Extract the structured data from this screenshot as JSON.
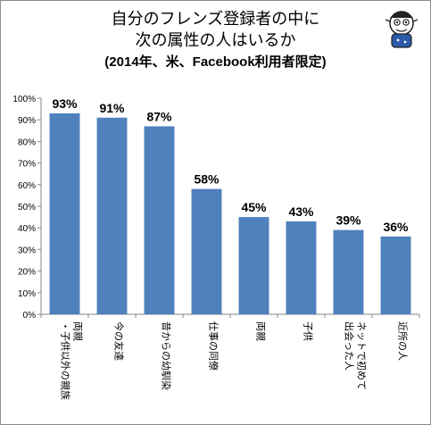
{
  "title": {
    "line1": "自分のフレンズ登録者の中に",
    "line2": "次の属性の人はいるか",
    "line3": "(2014年、米、Facebook利用者限定)"
  },
  "chart_data": {
    "type": "bar",
    "categories": [
      "両親・子供以外の親族",
      "今の友達",
      "昔からの幼馴染",
      "仕事の同僚",
      "両親",
      "子供",
      "ネットで初めて出会った人",
      "近所の人"
    ],
    "category_lines": [
      [
        "両親",
        "・子供以外の親族"
      ],
      [
        "今の友達"
      ],
      [
        "昔からの幼馴染"
      ],
      [
        "仕事の同僚"
      ],
      [
        "両親"
      ],
      [
        "子供"
      ],
      [
        "ネットで初めて",
        "出会った人"
      ],
      [
        "近所の人"
      ]
    ],
    "values": [
      93,
      91,
      87,
      58,
      45,
      43,
      39,
      36
    ],
    "data_labels": [
      "93%",
      "91%",
      "87%",
      "58%",
      "45%",
      "43%",
      "39%",
      "36%"
    ],
    "ylim": [
      0,
      100
    ],
    "yticks": [
      "0%",
      "10%",
      "20%",
      "30%",
      "40%",
      "50%",
      "60%",
      "70%",
      "80%",
      "90%",
      "100%"
    ],
    "grid": false,
    "legend": "none",
    "colors": {
      "bar": "#4f81bd",
      "axis": "#868686",
      "text": "#000000"
    }
  },
  "mascot": {
    "icon": "mascot-character-icon"
  }
}
